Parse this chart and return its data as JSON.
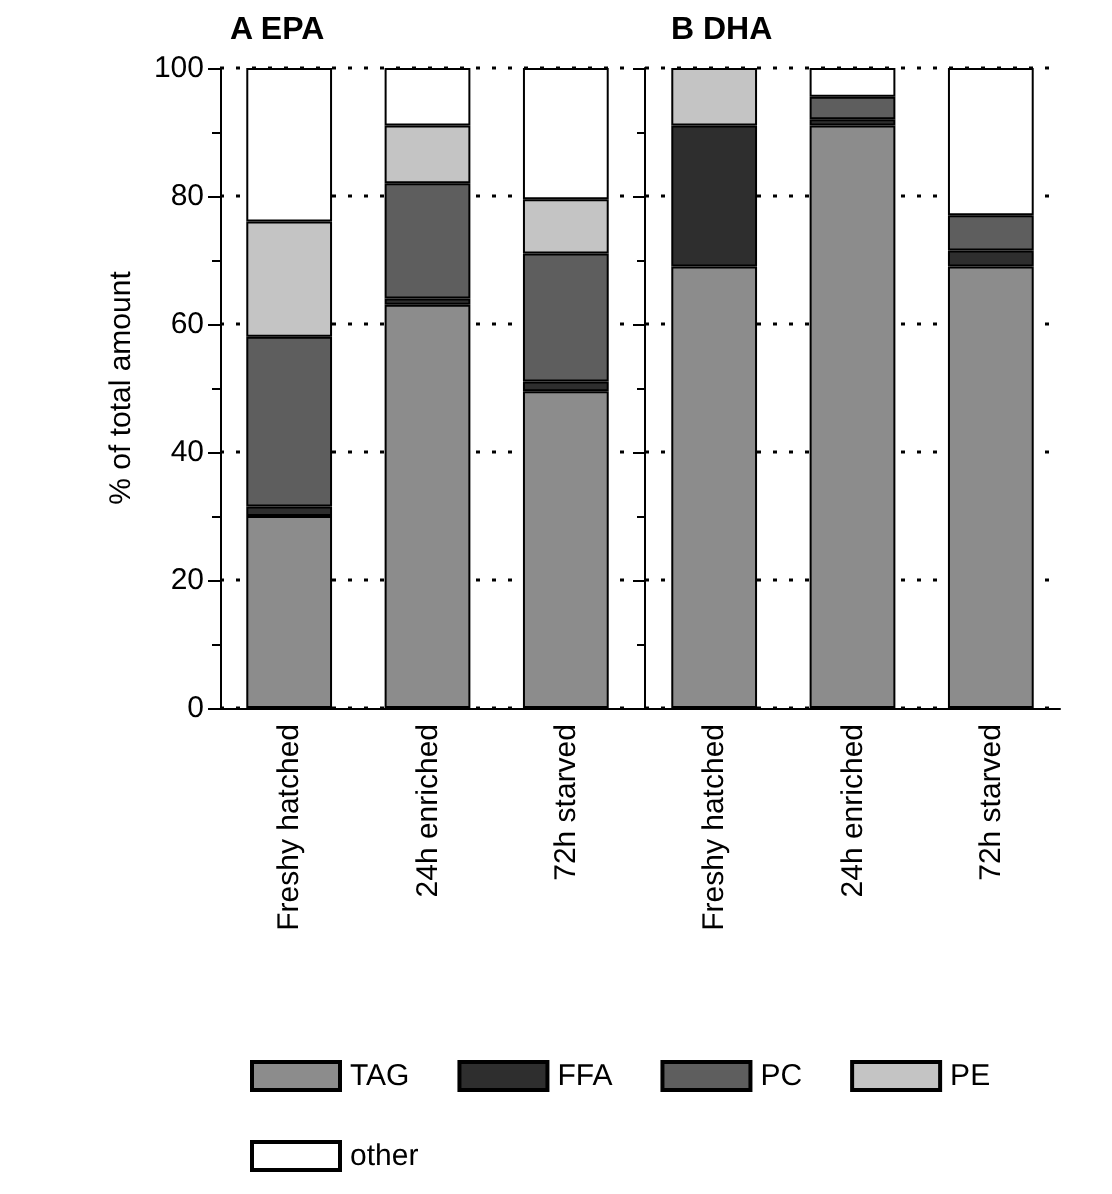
{
  "chart_data": [
    {
      "type": "bar",
      "title": "A EPA",
      "ylabel": "% of total amount",
      "categories": [
        "Freshy hatched",
        "24h enriched",
        "72h starved"
      ],
      "stacked": true,
      "ylim": [
        0,
        100
      ],
      "yticks": [
        0,
        20,
        40,
        60,
        80,
        100
      ],
      "grid": "y",
      "legend": "bottom",
      "series": [
        {
          "name": "TAG",
          "color": "#8c8c8c",
          "values": [
            30,
            63,
            49.5
          ]
        },
        {
          "name": "FFA",
          "color": "#2e2e2e",
          "values": [
            1.5,
            1,
            1.5
          ]
        },
        {
          "name": "PC",
          "color": "#5e5e5e",
          "values": [
            26.5,
            18,
            20
          ]
        },
        {
          "name": "PE",
          "color": "#c4c4c4",
          "values": [
            18,
            9,
            8.5
          ]
        },
        {
          "name": "other",
          "color": "#ffffff",
          "values": [
            24,
            9,
            20.5
          ]
        }
      ]
    },
    {
      "type": "bar",
      "title": "B DHA",
      "categories": [
        "Freshy hatched",
        "24h enriched",
        "72h starved"
      ],
      "stacked": true,
      "ylim": [
        0,
        100
      ],
      "yticks": [
        0,
        20,
        40,
        60,
        80,
        100
      ],
      "grid": "y",
      "legend": "bottom",
      "tick_labels": "x",
      "series": [
        {
          "name": "TAG",
          "color": "#8c8c8c",
          "values": [
            69,
            91,
            69
          ]
        },
        {
          "name": "FFA",
          "color": "#2e2e2e",
          "values": [
            22,
            1,
            2.5
          ]
        },
        {
          "name": "PC",
          "color": "#5e5e5e",
          "values": [
            0,
            3.5,
            5.5
          ]
        },
        {
          "name": "PE",
          "color": "#c4c4c4",
          "values": [
            9,
            0,
            0
          ]
        },
        {
          "name": "other",
          "color": "#ffffff",
          "values": [
            0,
            4.5,
            23
          ]
        }
      ]
    }
  ]
}
